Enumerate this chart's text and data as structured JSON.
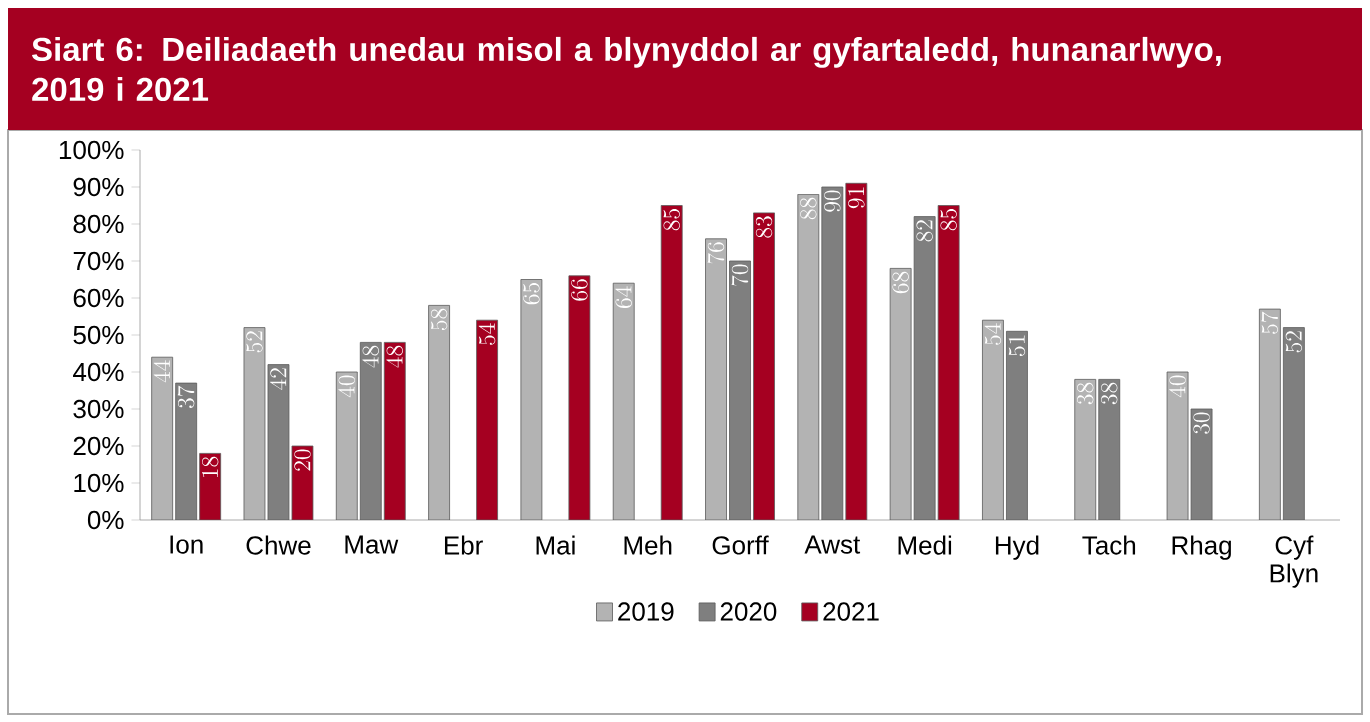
{
  "chart_data": {
    "type": "bar",
    "title": "Siart 6: Deiliadaeth unedau misol a blynyddol ar gyfartaledd, hunanarlwyo, 2019 i 2021",
    "categories": [
      "Ion",
      "Chwe",
      "Maw",
      "Ebr",
      "Mai",
      "Meh",
      "Gorff",
      "Awst",
      "Medi",
      "Hyd",
      "Tach",
      "Rhag",
      "Cyf Blyn"
    ],
    "series": [
      {
        "name": "2019",
        "color": "#b3b3b3",
        "values": [
          44,
          52,
          40,
          58,
          65,
          64,
          76,
          88,
          68,
          54,
          38,
          40,
          57
        ]
      },
      {
        "name": "2020",
        "color": "#7f7f7f",
        "values": [
          37,
          42,
          48,
          null,
          null,
          null,
          70,
          90,
          82,
          51,
          38,
          30,
          52
        ]
      },
      {
        "name": "2021",
        "color": "#a50021",
        "values": [
          18,
          20,
          48,
          54,
          66,
          85,
          83,
          91,
          85,
          null,
          null,
          null,
          null
        ]
      }
    ],
    "ylim": [
      0,
      100
    ],
    "yticks": [
      {
        "value": 0,
        "label": "0%"
      },
      {
        "value": 10,
        "label": "10%"
      },
      {
        "value": 20,
        "label": "20%"
      },
      {
        "value": 30,
        "label": "30%"
      },
      {
        "value": 40,
        "label": "40%"
      },
      {
        "value": 50,
        "label": "50%"
      },
      {
        "value": 60,
        "label": "60%"
      },
      {
        "value": 70,
        "label": "70%"
      },
      {
        "value": 80,
        "label": "80%"
      },
      {
        "value": 90,
        "label": "90%"
      },
      {
        "value": 100,
        "label": "100%"
      }
    ],
    "data_labels": true,
    "legend": "bottom"
  }
}
